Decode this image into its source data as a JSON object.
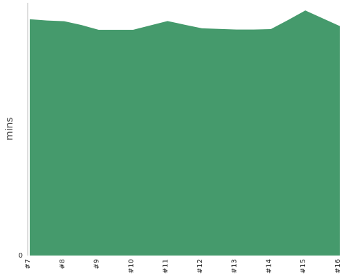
{
  "chart_data": {
    "type": "area",
    "x": [
      "#7",
      "#8",
      "#9",
      "#10",
      "#11",
      "#12",
      "#13",
      "#14",
      "#15",
      "#16"
    ],
    "points": [
      {
        "x": 7,
        "y": 94
      },
      {
        "x": 7.5,
        "y": 93.5
      },
      {
        "x": 8,
        "y": 93.2
      },
      {
        "x": 8.5,
        "y": 91.7
      },
      {
        "x": 9,
        "y": 89.8
      },
      {
        "x": 10,
        "y": 89.8
      },
      {
        "x": 11,
        "y": 93.3
      },
      {
        "x": 11.5,
        "y": 91.8
      },
      {
        "x": 12,
        "y": 90.4
      },
      {
        "x": 13,
        "y": 89.9
      },
      {
        "x": 13.5,
        "y": 89.9
      },
      {
        "x": 14,
        "y": 90.1
      },
      {
        "x": 14.5,
        "y": 93.7
      },
      {
        "x": 15,
        "y": 97.5
      },
      {
        "x": 16,
        "y": 91.3
      }
    ],
    "xlabel": "",
    "ylabel": "mins",
    "ytick_labels": [
      "0"
    ],
    "ylim": [
      0,
      100
    ],
    "xlim": [
      7,
      16
    ],
    "grid": false,
    "series": [
      {
        "color": "#459a6c"
      }
    ]
  }
}
